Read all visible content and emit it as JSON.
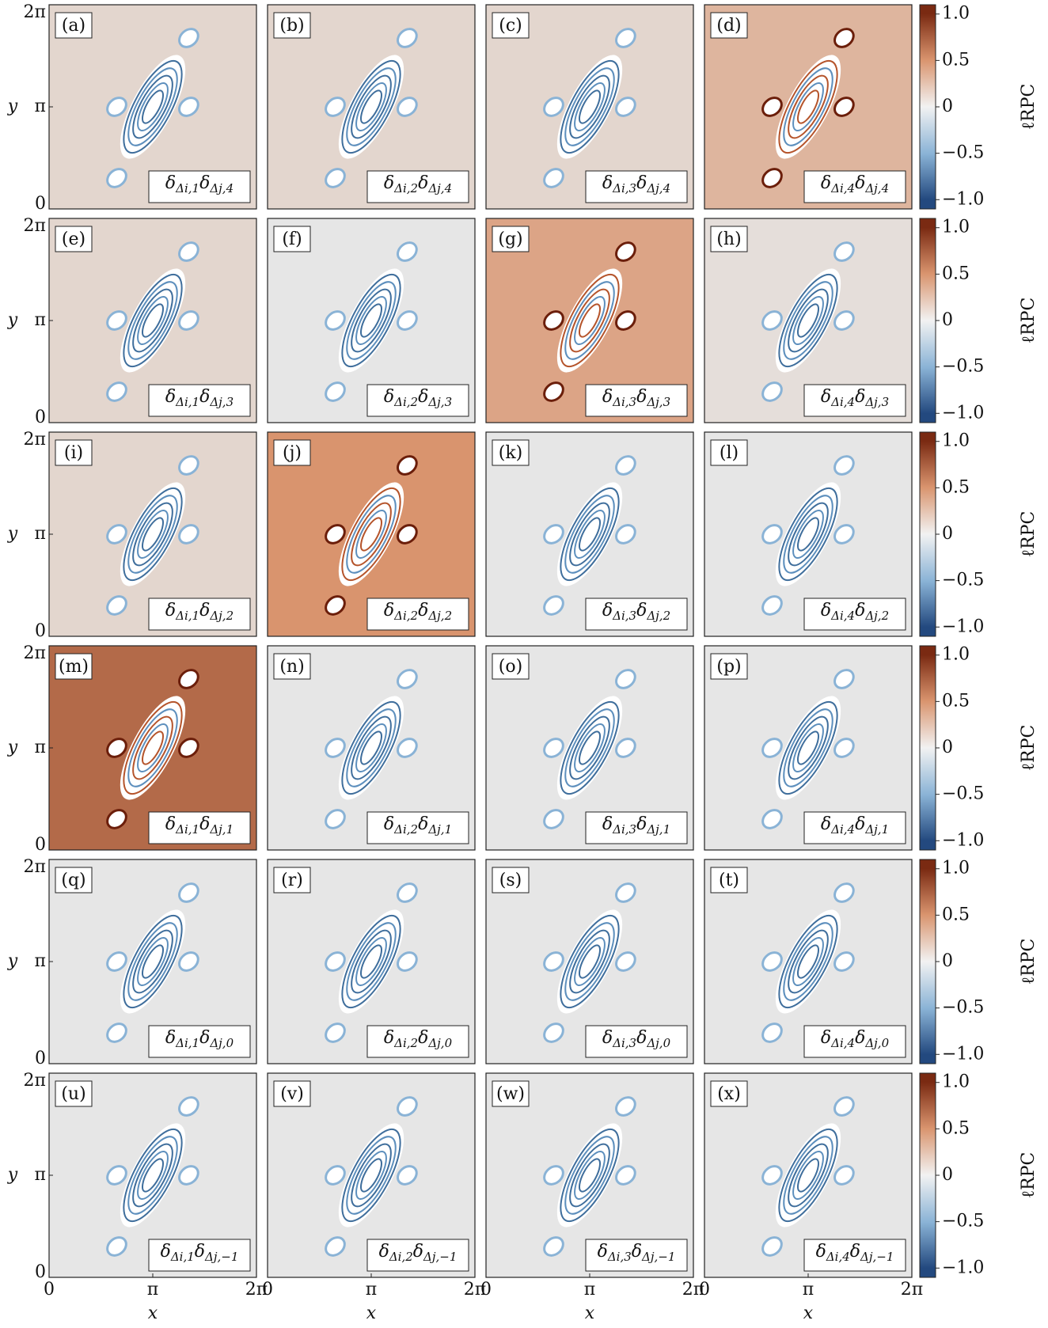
{
  "chart_data": {
    "type": "heatmap",
    "x_label": "x",
    "y_label": "y",
    "xlim": [
      0,
      6.28319
    ],
    "ylim": [
      0,
      6.28319
    ],
    "xticks": [
      0,
      {
        "value": 3.14159,
        "label": "π"
      },
      {
        "value": 6.28319,
        "label": "2π"
      }
    ],
    "yticks": [
      0,
      {
        "value": 3.14159,
        "label": "π"
      },
      {
        "value": 6.28319,
        "label": "2π"
      }
    ],
    "colorbar": {
      "label": "ℓRPC",
      "lim": [
        -1.1,
        1.1
      ],
      "ticks": [
        {
          "value": -1,
          "label": "−1.0"
        },
        {
          "value": -0.5,
          "label": "−0.5"
        },
        0,
        0.5,
        {
          "value": 1,
          "label": "1.0"
        }
      ]
    },
    "panels": [
      {
        "label": "(a)",
        "annotation": [
          "δ",
          "Δi,1",
          "δ",
          "Δj,4"
        ],
        "value": 0.1
      },
      {
        "label": "(b)",
        "annotation": [
          "δ",
          "Δi,2",
          "δ",
          "Δj,4"
        ],
        "value": 0.1
      },
      {
        "label": "(c)",
        "annotation": [
          "δ",
          "Δi,3",
          "δ",
          "Δj,4"
        ],
        "value": 0.1
      },
      {
        "label": "(d)",
        "annotation": [
          "δ",
          "Δi,4",
          "δ",
          "Δj,4"
        ],
        "value": 0.3
      },
      {
        "label": "(e)",
        "annotation": [
          "δ",
          "Δi,1",
          "δ",
          "Δj,3"
        ],
        "value": 0.1
      },
      {
        "label": "(f)",
        "annotation": [
          "δ",
          "Δi,2",
          "δ",
          "Δj,3"
        ],
        "value": 0
      },
      {
        "label": "(g)",
        "annotation": [
          "δ",
          "Δi,3",
          "δ",
          "Δj,3"
        ],
        "value": 0.4
      },
      {
        "label": "(h)",
        "annotation": [
          "δ",
          "Δi,4",
          "δ",
          "Δj,3"
        ],
        "value": 0.05
      },
      {
        "label": "(i)",
        "annotation": [
          "δ",
          "Δi,1",
          "δ",
          "Δj,2"
        ],
        "value": 0.1
      },
      {
        "label": "(j)",
        "annotation": [
          "δ",
          "Δi,2",
          "δ",
          "Δj,2"
        ],
        "value": 0.5
      },
      {
        "label": "(k)",
        "annotation": [
          "δ",
          "Δi,3",
          "δ",
          "Δj,2"
        ],
        "value": 0
      },
      {
        "label": "(l)",
        "annotation": [
          "δ",
          "Δi,4",
          "δ",
          "Δj,2"
        ],
        "value": 0
      },
      {
        "label": "(m)",
        "annotation": [
          "δ",
          "Δi,1",
          "δ",
          "Δj,1"
        ],
        "value": 0.7
      },
      {
        "label": "(n)",
        "annotation": [
          "δ",
          "Δi,2",
          "δ",
          "Δj,1"
        ],
        "value": 0
      },
      {
        "label": "(o)",
        "annotation": [
          "δ",
          "Δi,3",
          "δ",
          "Δj,1"
        ],
        "value": 0
      },
      {
        "label": "(p)",
        "annotation": [
          "δ",
          "Δi,4",
          "δ",
          "Δj,1"
        ],
        "value": 0
      },
      {
        "label": "(q)",
        "annotation": [
          "δ",
          "Δi,1",
          "δ",
          "Δj,0"
        ],
        "value": 0
      },
      {
        "label": "(r)",
        "annotation": [
          "δ",
          "Δi,2",
          "δ",
          "Δj,0"
        ],
        "value": 0
      },
      {
        "label": "(s)",
        "annotation": [
          "δ",
          "Δi,3",
          "δ",
          "Δj,0"
        ],
        "value": 0
      },
      {
        "label": "(t)",
        "annotation": [
          "δ",
          "Δi,4",
          "δ",
          "Δj,0"
        ],
        "value": 0
      },
      {
        "label": "(u)",
        "annotation": [
          "δ",
          "Δi,1",
          "δ",
          "Δj,−1"
        ],
        "value": 0
      },
      {
        "label": "(v)",
        "annotation": [
          "δ",
          "Δi,2",
          "δ",
          "Δj,−1"
        ],
        "value": 0
      },
      {
        "label": "(w)",
        "annotation": [
          "δ",
          "Δi,3",
          "δ",
          "Δj,−1"
        ],
        "value": 0
      },
      {
        "label": "(x)",
        "annotation": [
          "δ",
          "Δi,4",
          "δ",
          "Δj,−1"
        ],
        "value": 0
      }
    ]
  }
}
